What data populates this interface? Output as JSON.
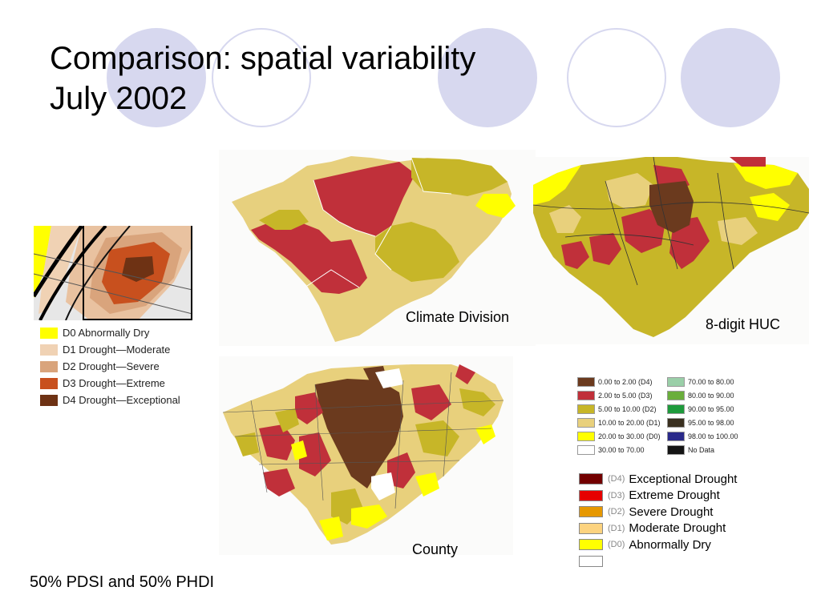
{
  "slide": {
    "title_line1": "Comparison: spatial variability",
    "title_line2": "July 2002",
    "footer": "50% PDSI and 50% PHDI"
  },
  "captions": {
    "climate_division": "Climate Division",
    "huc": "8-digit HUC",
    "county": "County"
  },
  "usdm_legend": [
    {
      "label": "D0 Abnormally Dry",
      "color": "#ffff00"
    },
    {
      "label": "D1 Drought—Moderate",
      "color": "#f0d2b4"
    },
    {
      "label": "D2 Drought—Severe",
      "color": "#d9a47c"
    },
    {
      "label": "D3 Drought—Extreme",
      "color": "#c8501e"
    },
    {
      "label": "D4 Drought—Exceptional",
      "color": "#6e3214"
    }
  ],
  "percentile_legend": {
    "left": [
      {
        "label": "0.00 to 2.00 (D4)",
        "color": "#6b3a1e"
      },
      {
        "label": "2.00 to 5.00 (D3)",
        "color": "#c0303a"
      },
      {
        "label": "5.00 to 10.00 (D2)",
        "color": "#c7b628"
      },
      {
        "label": "10.00 to 20.00 (D1)",
        "color": "#e8d07c"
      },
      {
        "label": "20.00 to 30.00 (D0)",
        "color": "#ffff00"
      },
      {
        "label": "30.00 to 70.00",
        "color": "#ffffff"
      }
    ],
    "right": [
      {
        "label": "70.00 to 80.00",
        "color": "#9acfa8"
      },
      {
        "label": "80.00 to 90.00",
        "color": "#6aae3c"
      },
      {
        "label": "90.00 to 95.00",
        "color": "#1e9a3c"
      },
      {
        "label": "95.00 to 98.00",
        "color": "#3a3020"
      },
      {
        "label": "98.00 to 100.00",
        "color": "#2a2a8a"
      },
      {
        "label": "No Data",
        "color": "#141414"
      }
    ]
  },
  "drought_legend": [
    {
      "code": "(D4)",
      "label": "Exceptional Drought",
      "color": "#730000"
    },
    {
      "code": "(D3)",
      "label": "Extreme Drought",
      "color": "#e60000"
    },
    {
      "code": "(D2)",
      "label": "Severe Drought",
      "color": "#e69800"
    },
    {
      "code": "(D1)",
      "label": "Moderate Drought",
      "color": "#fcd37f"
    },
    {
      "code": "(D0)",
      "label": "Abnormally Dry",
      "color": "#ffff00"
    },
    {
      "code": "",
      "label": "",
      "color": "#ffffff"
    }
  ]
}
